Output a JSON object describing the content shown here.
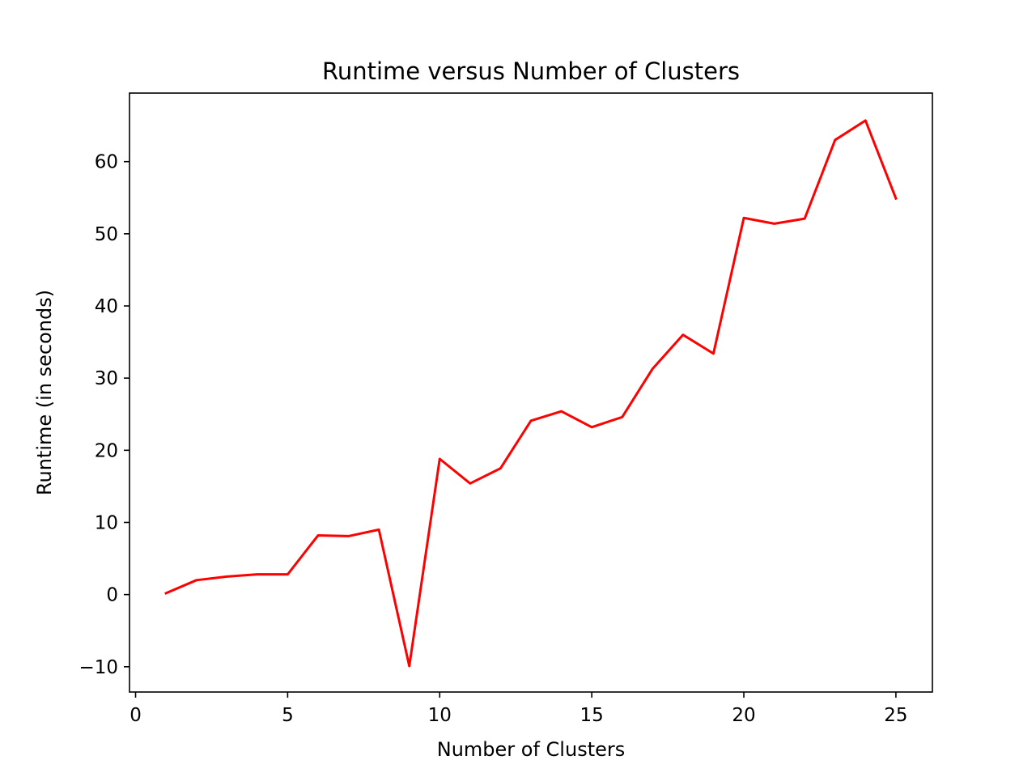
{
  "chart_data": {
    "type": "line",
    "title": "Runtime versus Number of Clusters",
    "xlabel": "Number of Clusters",
    "ylabel": "Runtime (in seconds)",
    "xlim": [
      -0.2,
      26.2
    ],
    "ylim": [
      -13.5,
      69.5
    ],
    "xticks": [
      0,
      5,
      10,
      15,
      20,
      25
    ],
    "yticks": [
      -10,
      0,
      10,
      20,
      30,
      40,
      50,
      60
    ],
    "xtick_labels": [
      "0",
      "5",
      "10",
      "15",
      "20",
      "25"
    ],
    "ytick_labels": [
      "−10",
      "0",
      "10",
      "20",
      "30",
      "40",
      "50",
      "60"
    ],
    "grid": false,
    "series": [
      {
        "color": "#ff0000",
        "x": [
          1,
          2,
          3,
          4,
          5,
          6,
          7,
          8,
          9,
          10,
          11,
          12,
          13,
          14,
          15,
          16,
          17,
          18,
          19,
          20,
          21,
          22,
          23,
          24,
          25
        ],
        "y": [
          0.2,
          2.0,
          2.5,
          2.8,
          2.8,
          8.2,
          8.1,
          9.0,
          -9.9,
          18.8,
          15.4,
          17.5,
          24.1,
          25.4,
          23.2,
          24.6,
          31.3,
          36.0,
          33.4,
          52.2,
          51.4,
          52.1,
          63.0,
          65.7,
          54.9
        ]
      }
    ]
  }
}
